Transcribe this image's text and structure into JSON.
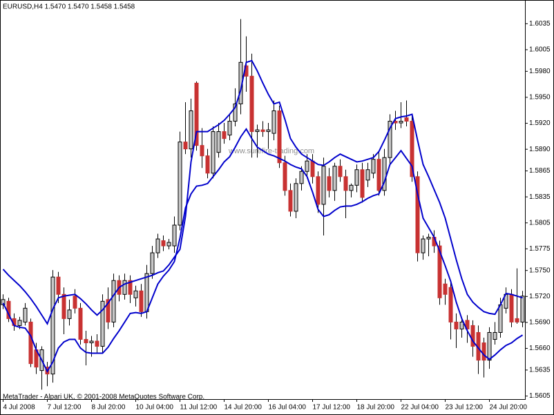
{
  "chart_data": {
    "type": "candlestick",
    "title": "EURUSD,H4  1.5470 1.5470 1.5458 1.5458",
    "footer": "MetaTrader - Alpari UK, © 2001-2008 MetaQuotes Software Corp.",
    "watermark": "www.surefire-trading.com",
    "categories": [
      "4 Jul 2008",
      null,
      null,
      null,
      null,
      null,
      null,
      null,
      "7 Jul 12:00",
      null,
      null,
      null,
      null,
      null,
      null,
      null,
      "8 Jul 20:00",
      null,
      null,
      null,
      null,
      null,
      null,
      null,
      "10 Jul 04:00",
      null,
      null,
      null,
      null,
      null,
      null,
      null,
      "11 Jul 12:00",
      null,
      null,
      null,
      null,
      null,
      null,
      null,
      "14 Jul 20:00",
      null,
      null,
      null,
      null,
      null,
      null,
      null,
      "16 Jul 04:00",
      null,
      null,
      null,
      null,
      null,
      null,
      null,
      "17 Jul 12:00",
      null,
      null,
      null,
      null,
      null,
      null,
      null,
      "18 Jul 20:00",
      null,
      null,
      null,
      null,
      null,
      null,
      null,
      "22 Jul 04:00",
      null,
      null,
      null,
      null,
      null,
      null,
      null,
      "23 Jul 12:00",
      null,
      null,
      null,
      null,
      null,
      null,
      null,
      "24 Jul 20:00",
      null,
      null,
      null,
      null,
      null,
      null
    ],
    "open": [
      1.571,
      1.5714,
      1.5694,
      1.5686,
      1.569,
      1.569,
      1.5658,
      1.5634,
      1.5638,
      1.563,
      1.5742,
      1.5722,
      1.5694,
      1.572,
      1.5706,
      1.567,
      1.5666,
      1.5668,
      1.5662,
      1.5716,
      1.569,
      1.5738,
      1.5722,
      1.5738,
      1.5718,
      1.5726,
      1.5702,
      1.5746,
      1.577,
      1.5784,
      1.5778,
      1.5778,
      1.5802,
      1.5898,
      1.589,
      1.5966,
      1.5894,
      1.5882,
      1.5862,
      1.5886,
      1.591,
      1.5906,
      1.5922,
      1.5942,
      1.5986,
      1.5974,
      1.591,
      1.5912,
      1.591,
      1.5908,
      1.5934,
      1.5874,
      1.5842,
      1.5818,
      1.585,
      1.5864,
      1.5876,
      1.5858,
      1.5826,
      1.5858,
      1.5842,
      1.587,
      1.5858,
      1.5842,
      1.5848,
      1.5866,
      1.5854,
      1.5862,
      1.5878,
      1.5842,
      1.588,
      1.5922,
      1.592,
      1.5926,
      1.5922,
      1.5858,
      1.577,
      1.5786,
      1.5788,
      1.5778,
      1.5734,
      1.573,
      1.569,
      1.5682,
      1.5692,
      1.5686,
      1.5678,
      1.5666,
      1.5646,
      1.567,
      1.5678,
      1.5706,
      1.5722,
      1.5694,
      1.569
    ],
    "high": [
      1.5722,
      1.5718,
      1.57,
      1.5696,
      1.5712,
      1.5694,
      1.5666,
      1.5662,
      1.5644,
      1.575,
      1.5748,
      1.573,
      1.5716,
      1.5728,
      1.5712,
      1.568,
      1.5674,
      1.5676,
      1.5722,
      1.573,
      1.5746,
      1.5744,
      1.5746,
      1.5744,
      1.5732,
      1.5734,
      1.5756,
      1.5778,
      1.5792,
      1.579,
      1.5786,
      1.5812,
      1.591,
      1.5944,
      1.5948,
      1.5968,
      1.5914,
      1.589,
      1.5916,
      1.592,
      1.592,
      1.593,
      1.596,
      1.604,
      1.602,
      1.6,
      1.5918,
      1.5922,
      1.592,
      1.5946,
      1.594,
      1.5882,
      1.585,
      1.5856,
      1.587,
      1.5884,
      1.5884,
      1.5864,
      1.588,
      1.5868,
      1.5874,
      1.5878,
      1.5866,
      1.585,
      1.5872,
      1.5874,
      1.5874,
      1.5884,
      1.5886,
      1.589,
      1.593,
      1.5934,
      1.5944,
      1.5946,
      1.5928,
      1.5864,
      1.579,
      1.5792,
      1.5796,
      1.5784,
      1.574,
      1.5736,
      1.57,
      1.5694,
      1.5698,
      1.5692,
      1.5686,
      1.5672,
      1.5684,
      1.569,
      1.5718,
      1.573,
      1.5728,
      1.5752,
      1.5726
    ],
    "low": [
      1.5705,
      1.569,
      1.568,
      1.5682,
      1.5686,
      1.5638,
      1.563,
      1.5612,
      1.5616,
      1.562,
      1.5712,
      1.5676,
      1.5686,
      1.57,
      1.5664,
      1.564,
      1.565,
      1.5654,
      1.5654,
      1.5682,
      1.5684,
      1.5714,
      1.5716,
      1.5712,
      1.5708,
      1.5696,
      1.5694,
      1.574,
      1.5764,
      1.5772,
      1.5774,
      1.577,
      1.5796,
      1.5884,
      1.588,
      1.5888,
      1.5868,
      1.5856,
      1.5856,
      1.588,
      1.5896,
      1.59,
      1.5916,
      1.593,
      1.5956,
      1.588,
      1.588,
      1.5904,
      1.589,
      1.59,
      1.5868,
      1.5836,
      1.5812,
      1.581,
      1.5842,
      1.5856,
      1.585,
      1.5816,
      1.579,
      1.5834,
      1.583,
      1.5852,
      1.581,
      1.5834,
      1.584,
      1.5828,
      1.5846,
      1.5856,
      1.5836,
      1.5836,
      1.5872,
      1.5912,
      1.5914,
      1.5916,
      1.5852,
      1.576,
      1.5762,
      1.5766,
      1.577,
      1.571,
      1.571,
      1.567,
      1.566,
      1.5672,
      1.5666,
      1.565,
      1.563,
      1.5626,
      1.5636,
      1.5664,
      1.5672,
      1.57,
      1.5684,
      1.5688,
      1.5684
    ],
    "close": [
      1.5716,
      1.5694,
      1.5686,
      1.5692,
      1.5706,
      1.5642,
      1.5638,
      1.5658,
      1.563,
      1.5742,
      1.5722,
      1.5694,
      1.5704,
      1.5706,
      1.567,
      1.5666,
      1.5668,
      1.5662,
      1.5714,
      1.569,
      1.5738,
      1.5722,
      1.5738,
      1.5722,
      1.5726,
      1.5702,
      1.5746,
      1.577,
      1.5786,
      1.5778,
      1.5782,
      1.5802,
      1.5898,
      1.589,
      1.5934,
      1.5894,
      1.5882,
      1.5862,
      1.591,
      1.591,
      1.5902,
      1.5922,
      1.5942,
      1.599,
      1.5974,
      1.591,
      1.5912,
      1.591,
      1.5912,
      1.5934,
      1.5874,
      1.5842,
      1.5818,
      1.585,
      1.5864,
      1.5876,
      1.5858,
      1.5826,
      1.587,
      1.5842,
      1.587,
      1.5858,
      1.5842,
      1.5848,
      1.5866,
      1.5834,
      1.5866,
      1.5878,
      1.5842,
      1.588,
      1.5922,
      1.592,
      1.5922,
      1.5922,
      1.5858,
      1.577,
      1.5786,
      1.5788,
      1.5778,
      1.5718,
      1.5722,
      1.569,
      1.5682,
      1.569,
      1.5682,
      1.5662,
      1.5646,
      1.5646,
      1.5678,
      1.5678,
      1.571,
      1.5722,
      1.569,
      1.569,
      1.572
    ],
    "lines": [
      {
        "color": "#0000cc",
        "values": [
          1.5751,
          1.5744,
          1.5738,
          1.5732,
          1.5725,
          1.5717,
          1.5708,
          1.5698,
          1.5688,
          1.5705,
          1.5718,
          1.572,
          1.5721,
          1.5722,
          1.5717,
          1.5711,
          1.5704,
          1.5698,
          1.5704,
          1.5712,
          1.5721,
          1.573,
          1.5734,
          1.5736,
          1.5738,
          1.574,
          1.5742,
          1.5744,
          1.5747,
          1.5749,
          1.5756,
          1.5765,
          1.5774,
          1.5812,
          1.5875,
          1.591,
          1.591,
          1.591,
          1.5914,
          1.5918,
          1.5923,
          1.593,
          1.5938,
          1.5958,
          1.599,
          1.5992,
          1.598,
          1.5966,
          1.5953,
          1.5942,
          1.5944,
          1.5924,
          1.5902,
          1.5892,
          1.5884,
          1.588,
          1.5876,
          1.5872,
          1.5871,
          1.5875,
          1.588,
          1.5884,
          1.5881,
          1.5878,
          1.5875,
          1.5876,
          1.5878,
          1.588,
          1.5887,
          1.59,
          1.5914,
          1.5925,
          1.5927,
          1.5928,
          1.593,
          1.59,
          1.5872,
          1.5858,
          1.5843,
          1.5828,
          1.581,
          1.5786,
          1.5762,
          1.574,
          1.5722,
          1.5713,
          1.5707,
          1.5702,
          1.57,
          1.5699,
          1.571,
          1.5723,
          1.5722,
          1.572,
          1.5718
        ]
      },
      {
        "color": "#0000cc",
        "values": [
          1.5712,
          1.5699,
          1.5686,
          1.5684,
          1.5683,
          1.5674,
          1.5658,
          1.5646,
          1.5633,
          1.5644,
          1.566,
          1.5667,
          1.567,
          1.567,
          1.566,
          1.5655,
          1.5654,
          1.5654,
          1.5654,
          1.5661,
          1.5671,
          1.568,
          1.569,
          1.57,
          1.5701,
          1.57,
          1.5702,
          1.5718,
          1.5734,
          1.5743,
          1.575,
          1.576,
          1.5787,
          1.5822,
          1.5838,
          1.5847,
          1.5848,
          1.585,
          1.5858,
          1.5866,
          1.5875,
          1.5881,
          1.5892,
          1.5904,
          1.5913,
          1.5902,
          1.5892,
          1.5888,
          1.5884,
          1.5882,
          1.5879,
          1.5876,
          1.5872,
          1.5869,
          1.5867,
          1.5858,
          1.584,
          1.582,
          1.5812,
          1.5814,
          1.5819,
          1.5823,
          1.5824,
          1.5824,
          1.5826,
          1.5829,
          1.5833,
          1.5836,
          1.5838,
          1.5852,
          1.5872,
          1.588,
          1.5888,
          1.5879,
          1.587,
          1.5838,
          1.581,
          1.5799,
          1.5788,
          1.5772,
          1.5755,
          1.5737,
          1.5713,
          1.5694,
          1.568,
          1.5668,
          1.566,
          1.5652,
          1.5647,
          1.5652,
          1.5658,
          1.5663,
          1.5666,
          1.5671,
          1.5675
        ]
      }
    ],
    "up_color": "#c8c8c8",
    "down_color": "#c83232",
    "edge_color": "#000000",
    "ylim": [
      1.5601,
      1.6062
    ],
    "yticks": [
      1.6035,
      1.6005,
      {
        "value": 1.598,
        "label": "1.5980"
      },
      {
        "value": 1.595,
        "label": "1.5950"
      },
      {
        "value": 1.592,
        "label": "1.5920"
      },
      {
        "value": 1.589,
        "label": "1.5890"
      },
      1.5865,
      1.5835,
      1.5805,
      1.5775,
      {
        "value": 1.575,
        "label": "1.5750"
      },
      {
        "value": 1.572,
        "label": "1.5720"
      },
      {
        "value": 1.569,
        "label": "1.5690"
      },
      {
        "value": 1.566,
        "label": "1.5660"
      },
      1.5635,
      1.5605
    ],
    "grid": false
  }
}
